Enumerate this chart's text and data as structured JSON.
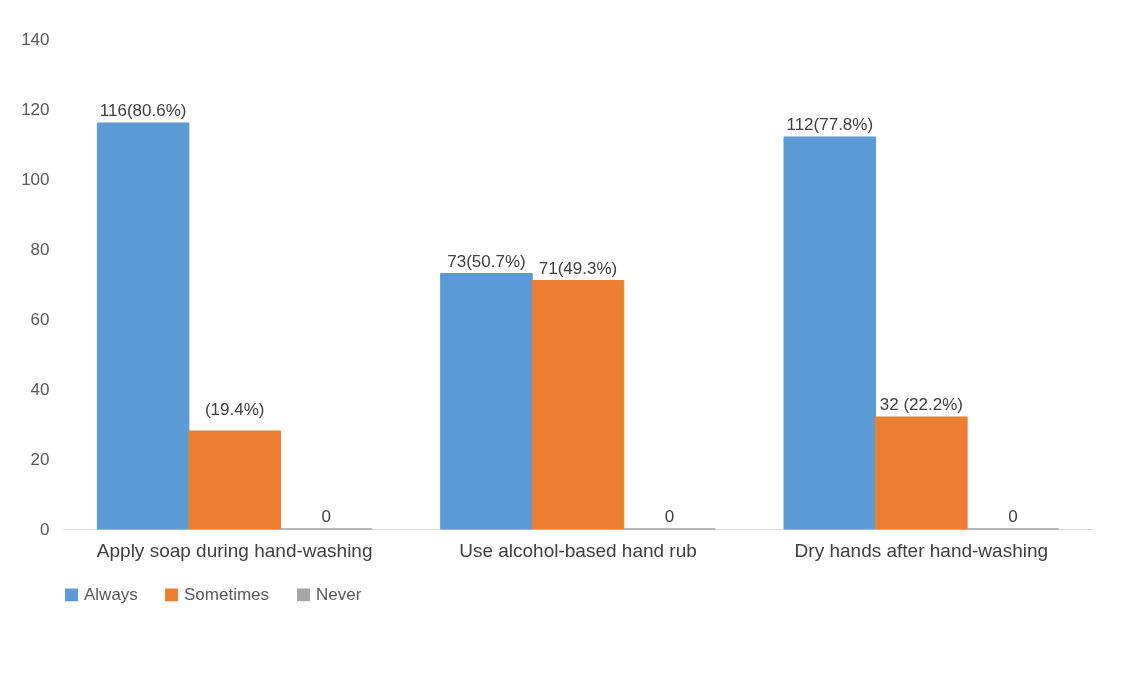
{
  "chart_data": {
    "type": "bar",
    "categories": [
      "Apply soap during hand-washing",
      "Use alcohol-based hand rub",
      "Dry hands after hand-washing"
    ],
    "series": [
      {
        "name": "Always",
        "color": "#5b9bd5",
        "values": [
          116,
          73,
          112
        ],
        "value_labels": [
          "116(80.6%)",
          "73(50.7%)",
          "112(77.8%)"
        ]
      },
      {
        "name": "Sometimes",
        "color": "#ed7d31",
        "values": [
          28,
          71,
          32
        ],
        "value_labels": [
          null,
          "71(49.3%)",
          "32 (22.2%)"
        ]
      },
      {
        "name": "Never",
        "color": "#a5a5a5",
        "values": [
          0,
          0,
          0
        ],
        "value_labels": [
          "0",
          "0",
          "0"
        ]
      }
    ],
    "ylim": [
      0,
      140
    ],
    "yticks": [
      0,
      20,
      40,
      60,
      80,
      100,
      120,
      140
    ],
    "annotations": [
      {
        "text": "(19.4%)",
        "x": "Apply soap during hand-washing",
        "y": 28
      }
    ],
    "grid": false,
    "legend": "bottom"
  }
}
